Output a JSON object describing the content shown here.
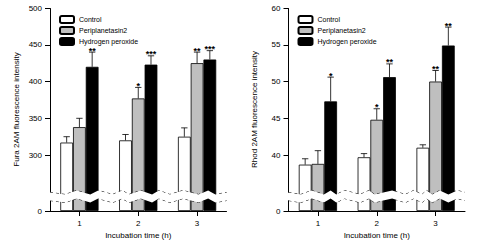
{
  "chart_data": [
    {
      "type": "bar",
      "categories": [
        "1",
        "2",
        "3"
      ],
      "x_label": "Incubation time (h)",
      "y_label": "Fura 2AM fluorescence intensity",
      "ylim": [
        0,
        500
      ],
      "yticks": [
        0,
        300,
        350,
        400,
        450,
        500
      ],
      "grid": false,
      "legend": "upper left",
      "series": [
        {
          "name": "Control",
          "color": "#ffffff",
          "values": [
            317,
            320,
            325
          ],
          "errors": [
            8,
            8,
            12
          ],
          "significance": [
            null,
            null,
            null
          ]
        },
        {
          "name": "Periplanetasin2",
          "color": "#bfbfbf",
          "values": [
            338,
            377,
            425
          ],
          "errors": [
            12,
            15,
            15
          ],
          "significance": [
            null,
            "*",
            "**"
          ]
        },
        {
          "name": "Hydrogen peroxide",
          "color": "#000000",
          "values": [
            420,
            423,
            430
          ],
          "errors": [
            20,
            12,
            12
          ],
          "significance": [
            "**",
            "***",
            "***"
          ]
        }
      ]
    },
    {
      "type": "bar",
      "categories": [
        "1",
        "2",
        "3"
      ],
      "x_label": "Incubation time (h)",
      "y_label": "Rhod 2AM fluorescence intensity",
      "ylim": [
        0,
        60
      ],
      "yticks": [
        0,
        40,
        45,
        50,
        55,
        60
      ],
      "grid": false,
      "legend": "upper left",
      "series": [
        {
          "name": "Control",
          "color": "#ffffff",
          "values": [
            38.7,
            39.7,
            41.0
          ],
          "errors": [
            0.8,
            0.5,
            0.4
          ],
          "significance": [
            null,
            null,
            null
          ]
        },
        {
          "name": "Periplanetasin2",
          "color": "#bfbfbf",
          "values": [
            38.8,
            44.8,
            50.0
          ],
          "errors": [
            1.8,
            1.5,
            1.5
          ],
          "significance": [
            null,
            "*",
            "**"
          ]
        },
        {
          "name": "Hydrogen peroxide",
          "color": "#000000",
          "values": [
            47.3,
            50.6,
            54.9
          ],
          "errors": [
            3.3,
            1.8,
            2.5
          ],
          "significance": [
            "*",
            "**",
            "**"
          ]
        }
      ]
    }
  ]
}
